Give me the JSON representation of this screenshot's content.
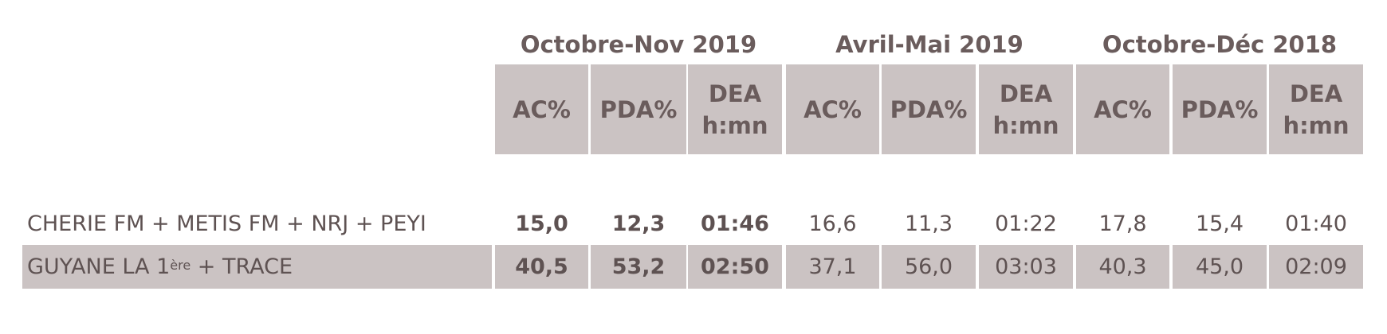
{
  "table": {
    "groups": [
      "Octobre-Nov 2019",
      "Avril-Mai 2019",
      "Octobre-Déc 2018"
    ],
    "columns": [
      [
        "AC%"
      ],
      [
        "PDA%"
      ],
      [
        "DEA",
        "h:mn"
      ],
      [
        "AC%"
      ],
      [
        "PDA%"
      ],
      [
        "DEA",
        "h:mn"
      ],
      [
        "AC%"
      ],
      [
        "PDA%"
      ],
      [
        "DEA",
        "h:mn"
      ]
    ],
    "rows": [
      {
        "label": {
          "text": "CHERIE FM + METIS FM + NRJ + PEYI"
        },
        "values": [
          "15,0",
          "12,3",
          "01:46",
          "16,6",
          "11,3",
          "01:22",
          "17,8",
          "15,4",
          "01:40"
        ]
      },
      {
        "label": {
          "text": "GUYANE LA 1",
          "sup": "ère",
          "after": " + TRACE"
        },
        "values": [
          "40,5",
          "53,2",
          "02:50",
          "37,1",
          "56,0",
          "03:03",
          "40,3",
          "45,0",
          "02:09"
        ]
      }
    ]
  }
}
